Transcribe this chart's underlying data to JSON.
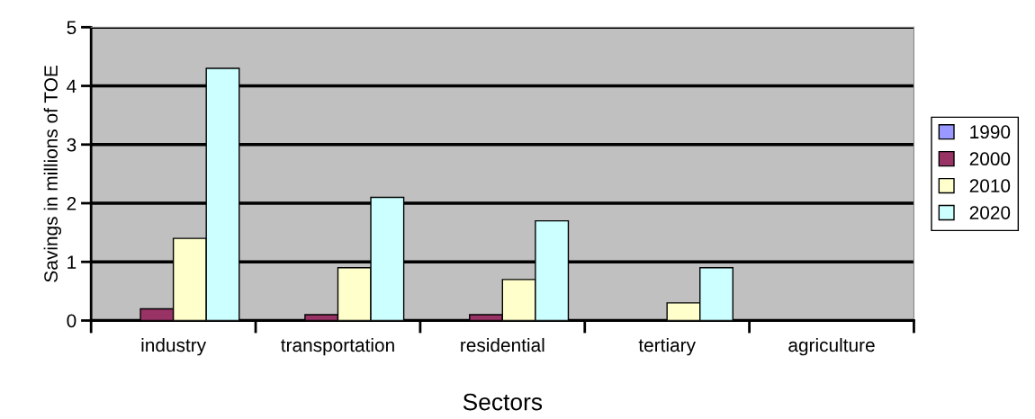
{
  "chart_data": {
    "type": "bar",
    "xlabel": "Sectors",
    "ylabel": "Savings in millions of TOE",
    "categories": [
      "industry",
      "transportation",
      "residential",
      "tertiary",
      "agriculture"
    ],
    "series": [
      {
        "name": "1990",
        "color": "#9999ff",
        "values": [
          null,
          null,
          null,
          null,
          null
        ]
      },
      {
        "name": "2000",
        "color": "#993366",
        "values": [
          0.2,
          0.1,
          0.1,
          null,
          null
        ]
      },
      {
        "name": "2010",
        "color": "#ffffcc",
        "values": [
          1.4,
          0.9,
          0.7,
          0.3,
          null
        ]
      },
      {
        "name": "2020",
        "color": "#ccffff",
        "values": [
          4.3,
          2.1,
          1.7,
          0.9,
          null
        ]
      }
    ],
    "ylim": [
      0,
      5
    ],
    "yticks": [
      0,
      1,
      2,
      3,
      4,
      5
    ],
    "grid": "y",
    "legend": "right"
  }
}
